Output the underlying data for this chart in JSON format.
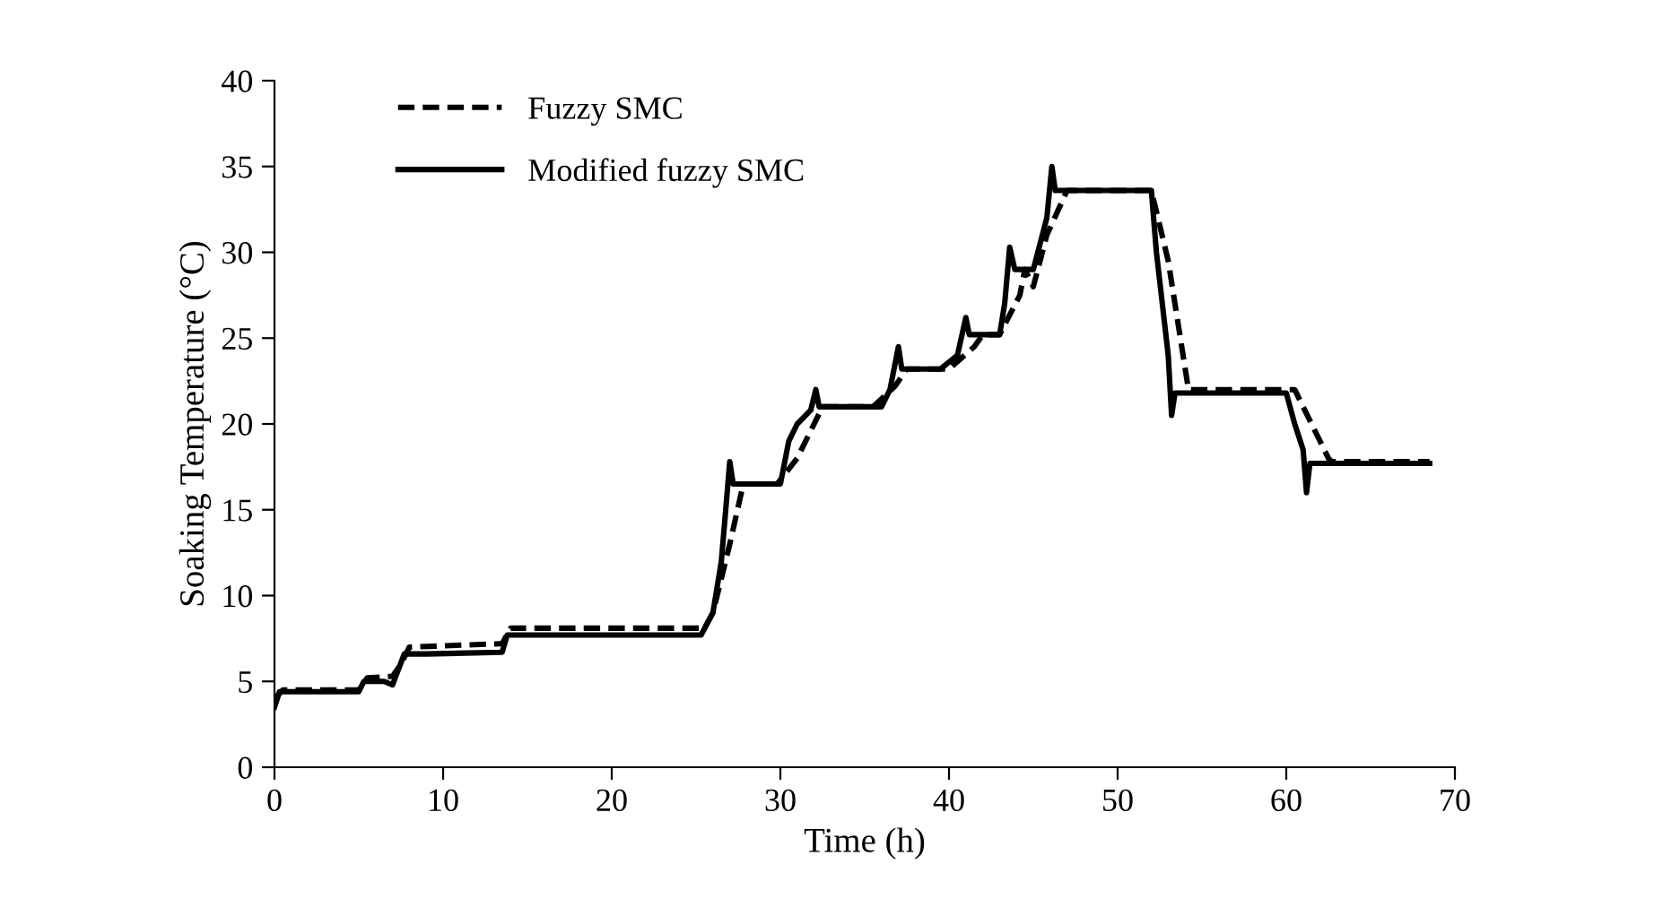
{
  "chart_data": {
    "type": "line",
    "xlabel": "Time (h)",
    "ylabel": "Soaking Temperature (°C)",
    "xlim": [
      0,
      70
    ],
    "xticks": [
      0,
      10,
      20,
      30,
      40,
      50,
      60,
      70
    ],
    "ylim": [
      0,
      40
    ],
    "yticks": [
      0,
      5,
      10,
      15,
      20,
      25,
      30,
      35,
      40
    ],
    "grid": false,
    "legend": "top left",
    "marker": "none",
    "series": [
      {
        "name": "Fuzzy SMC",
        "color": "#000000",
        "line_style": "dashed",
        "x": [
          0,
          0.5,
          5,
          5.5,
          7,
          7.5,
          8,
          13.5,
          14,
          25.5,
          26,
          27,
          27.8,
          29.8,
          31,
          32.5,
          35.5,
          36.8,
          37.5,
          40,
          41.5,
          42,
          43,
          44.2,
          44.5,
          45,
          45.8,
          47,
          52,
          53,
          54.2,
          60.5,
          61,
          62.5,
          62.7,
          68.5
        ],
        "values": [
          4,
          4.5,
          4.5,
          5.2,
          5.3,
          6,
          7,
          7.2,
          8.1,
          8.1,
          9,
          13,
          16.5,
          16.5,
          18,
          21,
          21,
          22.2,
          23.2,
          23.2,
          24.5,
          25.2,
          25.2,
          27.5,
          29,
          28,
          31,
          33.6,
          33.6,
          29.5,
          22,
          22,
          21,
          18,
          17.8,
          17.8
        ]
      },
      {
        "name": "Modified fuzzy SMC",
        "color": "#000000",
        "line_style": "solid",
        "x": [
          0,
          0.3,
          5,
          5.3,
          6.5,
          7,
          7.7,
          9,
          13.5,
          13.8,
          25.3,
          26,
          26.5,
          27,
          27.2,
          30,
          30.5,
          31,
          31.8,
          32.1,
          32.3,
          36,
          36.5,
          37,
          37.2,
          39.5,
          40.5,
          41,
          41.2,
          43,
          43.3,
          43.6,
          43.9,
          45,
          45.8,
          46.1,
          46.3,
          52,
          52.3,
          53,
          53.2,
          53.4,
          60,
          60.5,
          61,
          61.2,
          61.4,
          68.5
        ],
        "values": [
          3.5,
          4.4,
          4.4,
          5,
          5,
          4.8,
          6.6,
          6.6,
          6.7,
          7.7,
          7.7,
          9,
          12,
          17.8,
          16.5,
          16.5,
          19,
          20,
          20.8,
          22,
          21,
          21,
          22,
          24.5,
          23.2,
          23.2,
          24,
          26.2,
          25.2,
          25.2,
          27,
          30.3,
          29,
          29,
          32,
          35,
          33.6,
          33.6,
          30,
          24,
          20.5,
          21.8,
          21.8,
          20,
          18.5,
          16,
          17.7,
          17.7
        ]
      }
    ]
  }
}
